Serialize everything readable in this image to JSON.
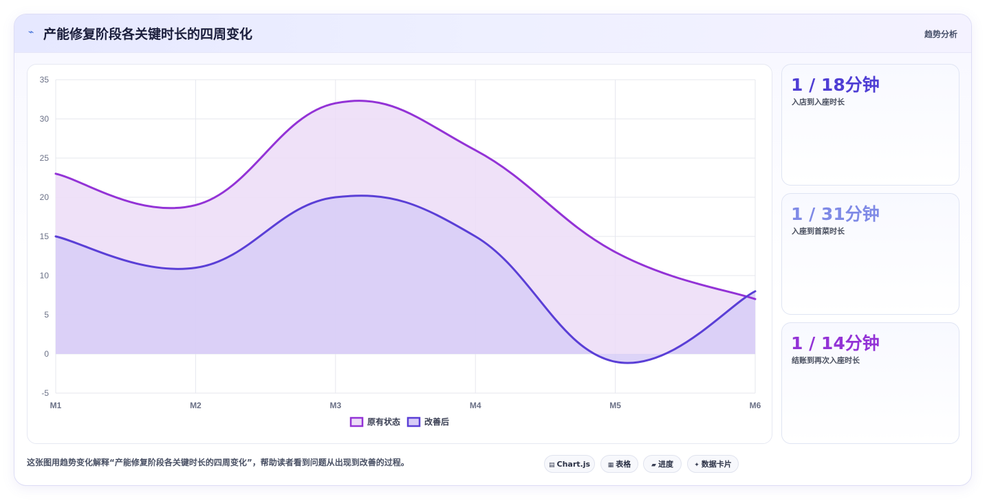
{
  "header": {
    "icon": "lightning-icon",
    "title": "产能修复阶段各关键时长的四周变化",
    "trend_link": "趋势分析"
  },
  "chart_data": {
    "type": "area",
    "categories": [
      "M1",
      "M2",
      "M3",
      "M4",
      "M5",
      "M6"
    ],
    "ylim": [
      -5,
      35
    ],
    "yticks": [
      -5,
      0,
      5,
      10,
      15,
      20,
      25,
      30,
      35
    ],
    "grid": true,
    "legend_position": "bottom",
    "series": [
      {
        "name": "原有状态",
        "values": [
          23,
          19,
          32,
          26,
          13,
          7
        ],
        "line_color": "#9333d6",
        "fill_color": "#ecdcf7"
      },
      {
        "name": "改善后",
        "values": [
          15,
          11,
          20,
          15,
          -1,
          8
        ],
        "line_color": "#5a3fd6",
        "fill_color": "#d7ccf7"
      }
    ]
  },
  "stats": [
    {
      "value": "1 / 18分钟",
      "label": "入店到入座时长",
      "color": "#4f3ed4"
    },
    {
      "value": "1 / 31分钟",
      "label": "入座到首菜时长",
      "color": "#7f8ae6"
    },
    {
      "value": "1 / 14分钟",
      "label": "结账到再次入座时长",
      "color": "#9333d6"
    }
  ],
  "caption": "这张图用趋势变化解释“产能修复阶段各关键时长的四周变化”，帮助读者看到问题从出现到改善的过程。",
  "chips": [
    {
      "icon": "chart-icon",
      "glyph": "▤",
      "label": "Chart.js"
    },
    {
      "icon": "table-icon",
      "glyph": "▦",
      "label": "表格"
    },
    {
      "icon": "progress-icon",
      "glyph": "▰",
      "label": "进度"
    },
    {
      "icon": "data-card-icon",
      "glyph": "✦",
      "label": "数据卡片"
    }
  ]
}
